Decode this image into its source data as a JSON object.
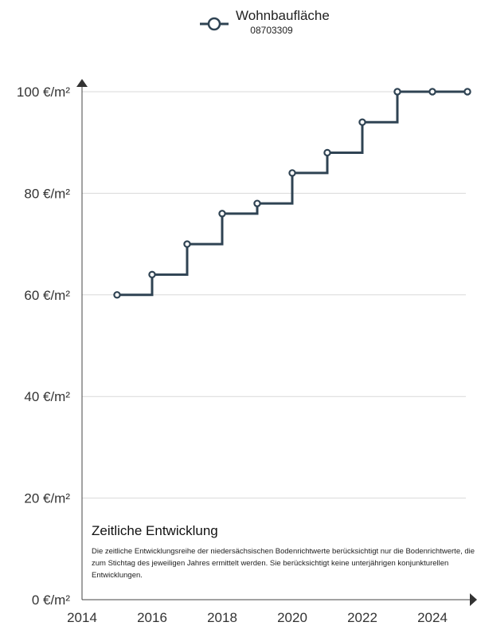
{
  "chart_data": {
    "type": "line",
    "step": true,
    "series": [
      {
        "name": "Wohnbaufläche",
        "id_label": "08703309",
        "x": [
          2015,
          2016,
          2017,
          2018,
          2019,
          2020,
          2021,
          2022,
          2023,
          2024,
          2025
        ],
        "values": [
          60,
          64,
          70,
          76,
          78,
          84,
          88,
          94,
          100,
          100,
          100
        ],
        "color": "#2f4353"
      }
    ],
    "x_ticks": [
      2014,
      2016,
      2018,
      2020,
      2022,
      2024
    ],
    "x_tick_labels": [
      "2014",
      "2016",
      "2018",
      "2020",
      "2022",
      "2024"
    ],
    "y_ticks": [
      0,
      20,
      40,
      60,
      80,
      100
    ],
    "y_tick_labels": [
      "0 €/m²",
      "20 €/m²",
      "40 €/m²",
      "60 €/m²",
      "80 €/m²",
      "100 €/m²"
    ],
    "xlim": [
      2014,
      2025.6
    ],
    "ylim": [
      0,
      100
    ],
    "grid": true,
    "legend": "top-center",
    "grid_color": "#d9d9d9",
    "axis_color": "#444444"
  },
  "info": {
    "title": "Zeitliche Entwicklung",
    "text": "Die zeitliche Entwicklungsreihe der niedersächsischen Bodenrichtwerte berücksichtigt nur die Bodenrichtwerte, die zum Stichtag des jeweiligen Jahres ermittelt werden. Sie berücksichtigt keine unterjährigen konjunkturellen Entwicklungen."
  }
}
